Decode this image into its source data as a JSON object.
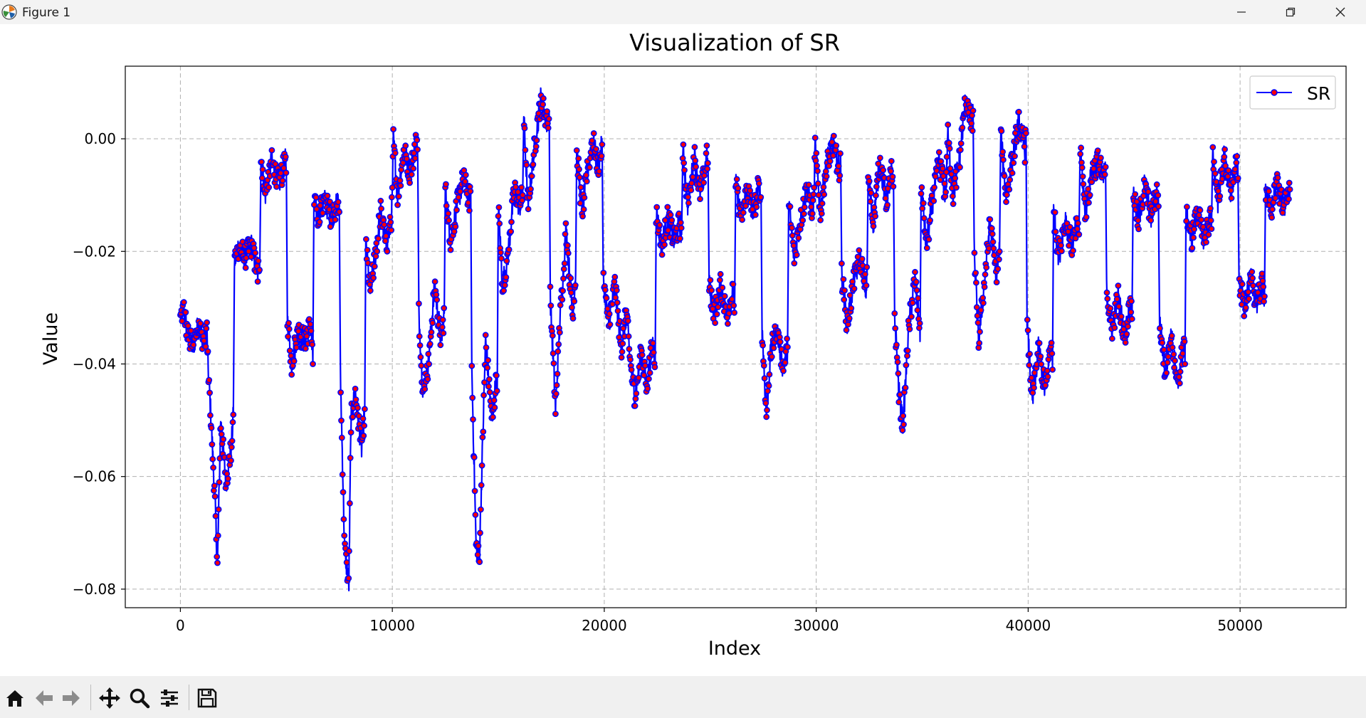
{
  "window": {
    "title": "Figure 1",
    "app_icon": "matplotlib-figure-icon",
    "controls": [
      "minimize-icon",
      "restore-icon",
      "close-icon"
    ]
  },
  "toolbar": {
    "buttons": [
      "home-icon",
      "back-arrow-icon",
      "forward-arrow-icon",
      "pan-move-icon",
      "zoom-magnifier-icon",
      "configure-subplots-icon",
      "save-floppy-icon"
    ]
  },
  "chart_data": {
    "type": "line",
    "title": "Visualization of SR",
    "xlabel": "Index",
    "ylabel": "Value",
    "xlim": [
      -2600,
      55000
    ],
    "ylim": [
      -0.0833,
      0.0129
    ],
    "xticks": [
      0,
      10000,
      20000,
      30000,
      40000,
      50000
    ],
    "xtick_labels": [
      "0",
      "10000",
      "20000",
      "30000",
      "40000",
      "50000"
    ],
    "yticks": [
      0.0,
      -0.02,
      -0.04,
      -0.06,
      -0.08
    ],
    "ytick_labels": [
      "0.00",
      "−0.02",
      "−0.04",
      "−0.06",
      "−0.08"
    ],
    "grid": true,
    "grid_style": "dashed",
    "legend_position": "top-right",
    "series": [
      {
        "name": "SR",
        "line_color": "#0000ff",
        "marker_color": "#ff0000",
        "marker_edge_color": "#0000ff",
        "marker": "circle",
        "description": "noisy segments of ~1250 samples separated by vertical jumps; approximate path of segment envelope points",
        "x": [
          0,
          150,
          350,
          600,
          850,
          1100,
          1250,
          1300,
          1450,
          1650,
          1750,
          1900,
          2150,
          2400,
          2500,
          2550,
          2750,
          3050,
          3350,
          3650,
          3750,
          3800,
          4000,
          4300,
          4650,
          4950,
          5000,
          5050,
          5250,
          5550,
          5850,
          6150,
          6250,
          6300,
          6500,
          6800,
          7150,
          7450,
          7500,
          7550,
          7750,
          7950,
          8050,
          8250,
          8550,
          8700,
          8750,
          8950,
          9150,
          9450,
          9700,
          9950,
          10000,
          10050,
          10250,
          10550,
          10850,
          11150,
          11200,
          11250,
          11450,
          11700,
          12000,
          12300,
          12450,
          12500,
          12750,
          13050,
          13350,
          13650,
          13700,
          13750,
          13950,
          14100,
          14400,
          14700,
          14900,
          14950,
          15000,
          15200,
          15450,
          15750,
          16000,
          16150,
          16200,
          16400,
          16700,
          17000,
          17300,
          17400,
          17450,
          17700,
          17900,
          18200,
          18500,
          18650,
          18700,
          18950,
          19200,
          19450,
          19700,
          19900,
          19950,
          20200,
          20500,
          20800,
          21050,
          21150,
          21200,
          21450,
          21750,
          22000,
          22300,
          22400,
          22450,
          22700,
          23000,
          23300,
          23550,
          23650,
          23700,
          23950,
          24250,
          24550,
          24850,
          24900,
          24950,
          25200,
          25500,
          25800,
          26050,
          26150,
          26200,
          26450,
          26750,
          27050,
          27300,
          27400,
          27450,
          27650,
          27850,
          28150,
          28450,
          28650,
          28700,
          28950,
          29250,
          29550,
          29850,
          29900,
          29950,
          30200,
          30500,
          30800,
          31100,
          31150,
          31200,
          31450,
          31750,
          32050,
          32350,
          32400,
          32450,
          32700,
          33000,
          33300,
          33550,
          33650,
          33700,
          33900,
          34100,
          34350,
          34650,
          34850,
          34900,
          34950,
          35200,
          35500,
          35800,
          36100,
          36150,
          36200,
          36450,
          36750,
          37050,
          37350,
          37400,
          37450,
          37650,
          37900,
          38200,
          38500,
          38650,
          38700,
          38950,
          39250,
          39550,
          39850,
          39900,
          39950,
          40200,
          40500,
          40800,
          41100,
          41150,
          41200,
          41450,
          41750,
          42050,
          42350,
          42400,
          42450,
          42700,
          43000,
          43300,
          43550,
          43650,
          43700,
          43950,
          44250,
          44550,
          44850,
          44900,
          44950,
          45200,
          45500,
          45800,
          46100,
          46150,
          46200,
          46450,
          46750,
          47050,
          47350,
          47400,
          47450,
          47700,
          48000,
          48300,
          48600,
          48650,
          48700,
          48950,
          49250,
          49550,
          49850,
          49900,
          49950,
          50200,
          50500,
          50800,
          51050,
          51150,
          51200,
          51450,
          51750,
          52050,
          52350
        ],
        "y": [
          -0.032,
          -0.03,
          -0.035,
          -0.037,
          -0.033,
          -0.036,
          -0.034,
          -0.04,
          -0.05,
          -0.066,
          -0.076,
          -0.05,
          -0.061,
          -0.055,
          -0.049,
          -0.022,
          -0.019,
          -0.021,
          -0.019,
          -0.024,
          -0.021,
          -0.003,
          -0.01,
          -0.004,
          -0.008,
          -0.004,
          -0.006,
          -0.032,
          -0.04,
          -0.034,
          -0.036,
          -0.033,
          -0.04,
          -0.011,
          -0.014,
          -0.011,
          -0.014,
          -0.011,
          -0.013,
          -0.042,
          -0.073,
          -0.079,
          -0.05,
          -0.045,
          -0.055,
          -0.048,
          -0.019,
          -0.027,
          -0.022,
          -0.013,
          -0.019,
          -0.015,
          -0.01,
          0.0,
          -0.01,
          -0.002,
          -0.006,
          0.0,
          -0.004,
          -0.031,
          -0.045,
          -0.04,
          -0.026,
          -0.036,
          -0.031,
          -0.009,
          -0.018,
          -0.012,
          -0.007,
          -0.011,
          -0.009,
          -0.041,
          -0.072,
          -0.075,
          -0.036,
          -0.05,
          -0.043,
          -0.045,
          -0.012,
          -0.026,
          -0.021,
          -0.009,
          -0.012,
          -0.01,
          0.004,
          -0.012,
          -0.002,
          0.007,
          0.003,
          0.005,
          -0.028,
          -0.048,
          -0.033,
          -0.016,
          -0.031,
          -0.024,
          -0.002,
          -0.013,
          -0.006,
          0.0,
          -0.005,
          -0.001,
          -0.025,
          -0.033,
          -0.026,
          -0.037,
          -0.031,
          -0.036,
          -0.039,
          -0.046,
          -0.038,
          -0.044,
          -0.036,
          -0.04,
          -0.013,
          -0.019,
          -0.014,
          -0.018,
          -0.015,
          -0.017,
          -0.002,
          -0.012,
          -0.003,
          -0.01,
          -0.003,
          -0.006,
          -0.026,
          -0.031,
          -0.026,
          -0.032,
          -0.027,
          -0.03,
          -0.008,
          -0.014,
          -0.009,
          -0.013,
          -0.008,
          -0.011,
          -0.034,
          -0.049,
          -0.038,
          -0.034,
          -0.041,
          -0.037,
          -0.011,
          -0.021,
          -0.015,
          -0.009,
          -0.013,
          -0.01,
          -0.001,
          -0.013,
          -0.004,
          -0.001,
          -0.006,
          -0.003,
          -0.024,
          -0.033,
          -0.026,
          -0.021,
          -0.027,
          -0.024,
          -0.007,
          -0.015,
          -0.004,
          -0.011,
          -0.006,
          -0.009,
          -0.031,
          -0.045,
          -0.051,
          -0.034,
          -0.025,
          -0.032,
          -0.036,
          -0.008,
          -0.019,
          -0.011,
          -0.004,
          -0.01,
          -0.007,
          0.001,
          -0.01,
          -0.004,
          0.007,
          0.002,
          0.005,
          -0.019,
          -0.036,
          -0.027,
          -0.015,
          -0.024,
          -0.02,
          0.001,
          -0.01,
          -0.004,
          0.003,
          -0.002,
          0.001,
          -0.033,
          -0.047,
          -0.037,
          -0.045,
          -0.036,
          -0.041,
          -0.013,
          -0.021,
          -0.014,
          -0.019,
          -0.015,
          -0.017,
          -0.002,
          -0.013,
          -0.006,
          -0.004,
          -0.007,
          -0.005,
          -0.027,
          -0.034,
          -0.028,
          -0.035,
          -0.029,
          -0.032,
          -0.009,
          -0.015,
          -0.008,
          -0.014,
          -0.009,
          -0.012,
          -0.032,
          -0.041,
          -0.035,
          -0.044,
          -0.036,
          -0.04,
          -0.013,
          -0.018,
          -0.013,
          -0.018,
          -0.014,
          -0.016,
          -0.003,
          -0.011,
          -0.003,
          -0.01,
          -0.004,
          -0.007,
          -0.025,
          -0.03,
          -0.025,
          -0.029,
          -0.026,
          -0.028,
          -0.009,
          -0.013,
          -0.008,
          -0.012,
          -0.009
        ]
      }
    ]
  }
}
